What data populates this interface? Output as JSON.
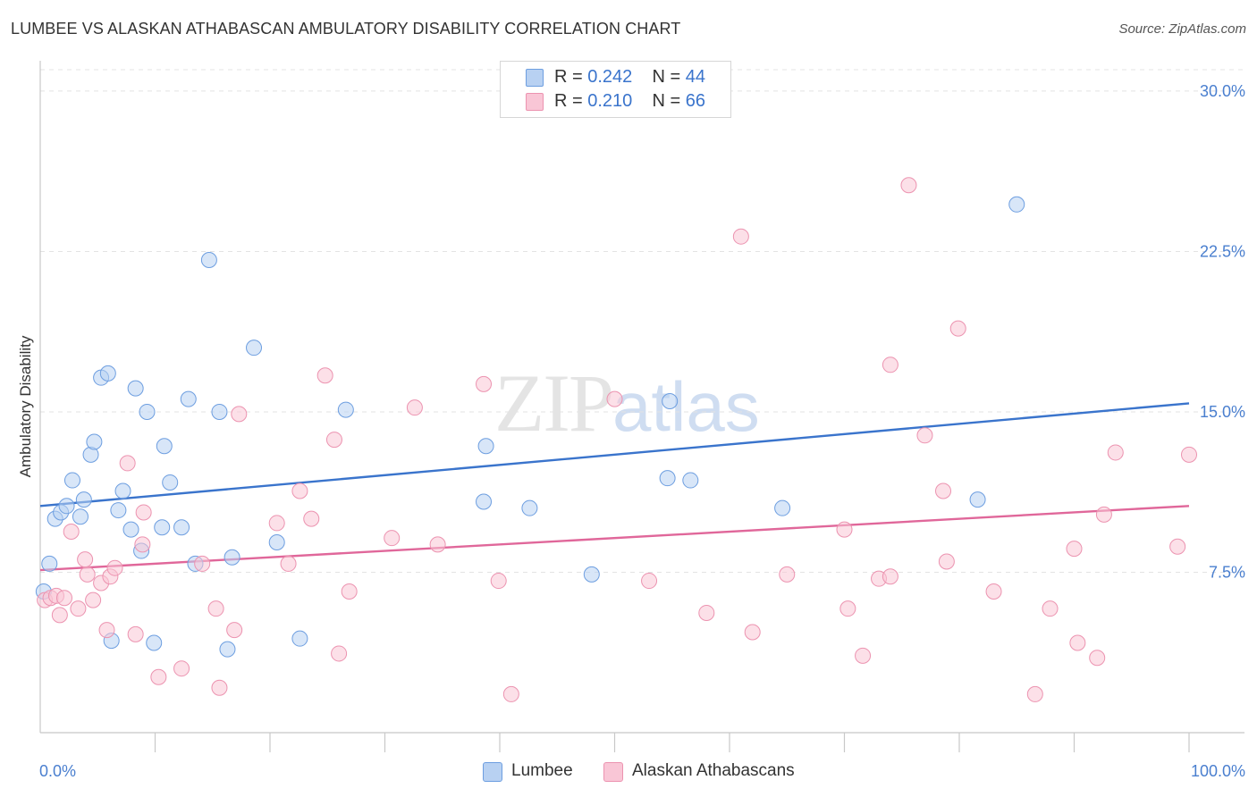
{
  "header": {
    "title": "LUMBEE VS ALASKAN ATHABASCAN AMBULATORY DISABILITY CORRELATION CHART",
    "source": "Source: ZipAtlas.com"
  },
  "watermark": {
    "zip": "ZIP",
    "atlas": "atlas"
  },
  "legend_top": {
    "rows": [
      {
        "r_label": "R = ",
        "r_value": "0.242",
        "n_label": "N = ",
        "n_value": "44",
        "color": "#b8d1f2"
      },
      {
        "r_label": "R = ",
        "r_value": "0.210",
        "n_label": "N = ",
        "n_value": "66",
        "color": "#f9c6d6"
      }
    ]
  },
  "legend_bottom": {
    "items": [
      {
        "label": "Lumbee",
        "color": "#b8d1f2"
      },
      {
        "label": "Alaskan Athabascans",
        "color": "#f9c6d6"
      }
    ]
  },
  "chart_data": {
    "type": "scatter",
    "title": "LUMBEE VS ALASKAN ATHABASCAN AMBULATORY DISABILITY CORRELATION CHART",
    "xlabel": "",
    "ylabel": "Ambulatory Disability",
    "xlim": [
      0,
      100
    ],
    "ylim": [
      0,
      31
    ],
    "x_tick_labels": [
      "0.0%",
      "100.0%"
    ],
    "y_ticks": [
      7.5,
      15.0,
      22.5,
      30.0
    ],
    "y_tick_labels": [
      "7.5%",
      "15.0%",
      "22.5%",
      "30.0%"
    ],
    "grid": true,
    "legend_position": "top-center",
    "series": [
      {
        "name": "Lumbee",
        "color": "#b8d1f2",
        "stroke": "#6d9ee0",
        "trend_color": "#3a74cc",
        "trend": [
          [
            0,
            10.6
          ],
          [
            100,
            15.4
          ]
        ],
        "points": [
          [
            0.3,
            6.6
          ],
          [
            0.8,
            7.9
          ],
          [
            1.3,
            10.0
          ],
          [
            1.8,
            10.3
          ],
          [
            2.3,
            10.6
          ],
          [
            2.8,
            11.8
          ],
          [
            3.5,
            10.1
          ],
          [
            3.8,
            10.9
          ],
          [
            4.4,
            13.0
          ],
          [
            4.7,
            13.6
          ],
          [
            5.3,
            16.6
          ],
          [
            5.9,
            16.8
          ],
          [
            6.2,
            4.3
          ],
          [
            6.8,
            10.4
          ],
          [
            7.2,
            11.3
          ],
          [
            7.9,
            9.5
          ],
          [
            8.3,
            16.1
          ],
          [
            8.8,
            8.5
          ],
          [
            9.3,
            15.0
          ],
          [
            9.9,
            4.2
          ],
          [
            10.6,
            9.6
          ],
          [
            10.8,
            13.4
          ],
          [
            11.3,
            11.7
          ],
          [
            12.3,
            9.6
          ],
          [
            12.9,
            15.6
          ],
          [
            13.5,
            7.9
          ],
          [
            14.7,
            22.1
          ],
          [
            15.6,
            15.0
          ],
          [
            16.3,
            3.9
          ],
          [
            16.7,
            8.2
          ],
          [
            18.6,
            18.0
          ],
          [
            20.6,
            8.9
          ],
          [
            22.6,
            4.4
          ],
          [
            26.6,
            15.1
          ],
          [
            38.6,
            10.8
          ],
          [
            38.8,
            13.4
          ],
          [
            42.6,
            10.5
          ],
          [
            48.0,
            7.4
          ],
          [
            54.6,
            11.9
          ],
          [
            54.8,
            15.5
          ],
          [
            56.6,
            11.8
          ],
          [
            64.6,
            10.5
          ],
          [
            81.6,
            10.9
          ],
          [
            85.0,
            24.7
          ]
        ]
      },
      {
        "name": "Alaskan Athabascans",
        "color": "#f9c6d6",
        "stroke": "#ec93b0",
        "trend_color": "#e0679a",
        "trend": [
          [
            0,
            7.6
          ],
          [
            100,
            10.6
          ]
        ],
        "points": [
          [
            0.4,
            6.2
          ],
          [
            0.9,
            6.3
          ],
          [
            1.4,
            6.4
          ],
          [
            1.7,
            5.5
          ],
          [
            2.1,
            6.3
          ],
          [
            2.7,
            9.4
          ],
          [
            3.3,
            5.8
          ],
          [
            3.9,
            8.1
          ],
          [
            4.1,
            7.4
          ],
          [
            4.6,
            6.2
          ],
          [
            5.3,
            7.0
          ],
          [
            5.8,
            4.8
          ],
          [
            6.1,
            7.3
          ],
          [
            6.5,
            7.7
          ],
          [
            7.6,
            12.6
          ],
          [
            8.3,
            4.6
          ],
          [
            8.9,
            8.8
          ],
          [
            9.0,
            10.3
          ],
          [
            10.3,
            2.6
          ],
          [
            12.3,
            3.0
          ],
          [
            14.1,
            7.9
          ],
          [
            15.3,
            5.8
          ],
          [
            15.6,
            2.1
          ],
          [
            16.9,
            4.8
          ],
          [
            17.3,
            14.9
          ],
          [
            20.6,
            9.8
          ],
          [
            21.6,
            7.9
          ],
          [
            22.6,
            11.3
          ],
          [
            23.6,
            10.0
          ],
          [
            24.8,
            16.7
          ],
          [
            25.6,
            13.7
          ],
          [
            26.0,
            3.7
          ],
          [
            26.9,
            6.6
          ],
          [
            30.6,
            9.1
          ],
          [
            32.6,
            15.2
          ],
          [
            34.6,
            8.8
          ],
          [
            38.6,
            16.3
          ],
          [
            39.9,
            7.1
          ],
          [
            41.0,
            1.8
          ],
          [
            50.0,
            15.6
          ],
          [
            53.0,
            7.1
          ],
          [
            58.0,
            5.6
          ],
          [
            61.0,
            23.2
          ],
          [
            62.0,
            4.7
          ],
          [
            65.0,
            7.4
          ],
          [
            70.0,
            9.5
          ],
          [
            70.3,
            5.8
          ],
          [
            71.6,
            3.6
          ],
          [
            73.0,
            7.2
          ],
          [
            74.0,
            7.3
          ],
          [
            74.0,
            17.2
          ],
          [
            75.6,
            25.6
          ],
          [
            77.0,
            13.9
          ],
          [
            78.6,
            11.3
          ],
          [
            78.9,
            8.0
          ],
          [
            79.9,
            18.9
          ],
          [
            83.0,
            6.6
          ],
          [
            86.6,
            1.8
          ],
          [
            87.9,
            5.8
          ],
          [
            90.0,
            8.6
          ],
          [
            90.3,
            4.2
          ],
          [
            92.0,
            3.5
          ],
          [
            92.6,
            10.2
          ],
          [
            93.6,
            13.1
          ],
          [
            99.0,
            8.7
          ],
          [
            100.0,
            13.0
          ]
        ]
      }
    ]
  }
}
